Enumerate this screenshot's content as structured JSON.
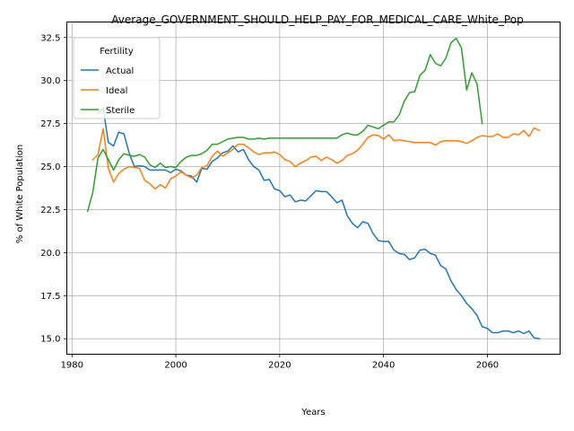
{
  "chart_data": {
    "type": "line",
    "title": "Average_GOVERNMENT_SHOULD_HELP_PAY_FOR_MEDICAL_CARE_White_Pop",
    "xlabel": "Years",
    "ylabel": "% of White Population",
    "xlim": [
      1979,
      2074
    ],
    "ylim": [
      14.1,
      33.4
    ],
    "xticks": [
      1980,
      2000,
      2020,
      2040,
      2060
    ],
    "yticks": [
      15.0,
      17.5,
      20.0,
      22.5,
      25.0,
      27.5,
      30.0,
      32.5
    ],
    "xtick_labels": [
      "1980",
      "2000",
      "2020",
      "2040",
      "2060"
    ],
    "ytick_labels": [
      "15.0",
      "17.5",
      "20.0",
      "22.5",
      "25.0",
      "27.5",
      "30.0",
      "32.5"
    ],
    "grid": true,
    "legend": {
      "title": "Fertility",
      "placement": "upper-left"
    },
    "series": [
      {
        "name": "Actual",
        "color": "#1f77b4",
        "x": [
          1985,
          1986,
          1987,
          1988,
          1989,
          1990,
          1991,
          1992,
          1993,
          1994,
          1995,
          1996,
          1997,
          1998,
          1999,
          2000,
          2001,
          2002,
          2003,
          2004,
          2005,
          2006,
          2007,
          2008,
          2009,
          2010,
          2011,
          2012,
          2013,
          2014,
          2015,
          2016,
          2017,
          2018,
          2019,
          2020,
          2021,
          2022,
          2023,
          2024,
          2025,
          2026,
          2027,
          2028,
          2029,
          2030,
          2031,
          2032,
          2033,
          2034,
          2035,
          2036,
          2037,
          2038,
          2039,
          2040,
          2041,
          2042,
          2043,
          2044,
          2045,
          2046,
          2047,
          2048,
          2049,
          2050,
          2051,
          2052,
          2053,
          2054,
          2055,
          2056,
          2057,
          2058,
          2059,
          2060,
          2061,
          2062,
          2063,
          2064,
          2065,
          2066,
          2067,
          2068,
          2069,
          2070
        ],
        "y": [
          28.1,
          28.4,
          26.4,
          26.2,
          27.0,
          26.9,
          25.8,
          25.0,
          25.05,
          25.0,
          24.8,
          24.8,
          24.8,
          24.8,
          24.65,
          24.85,
          24.75,
          24.5,
          24.45,
          24.1,
          24.9,
          24.85,
          25.3,
          25.5,
          25.8,
          25.9,
          26.2,
          25.85,
          26.0,
          25.4,
          25.0,
          24.8,
          24.2,
          24.25,
          23.7,
          23.6,
          23.25,
          23.35,
          22.95,
          23.05,
          23.0,
          23.3,
          23.6,
          23.55,
          23.55,
          23.25,
          22.9,
          23.05,
          22.15,
          21.7,
          21.45,
          21.8,
          21.7,
          21.1,
          20.7,
          20.65,
          20.65,
          20.15,
          19.95,
          19.9,
          19.6,
          19.7,
          20.15,
          20.2,
          19.95,
          19.85,
          19.25,
          19.05,
          18.35,
          17.85,
          17.5,
          17.05,
          16.75,
          16.35,
          15.7,
          15.6,
          15.35,
          15.35,
          15.45,
          15.45,
          15.35,
          15.45,
          15.3,
          15.45,
          15.05,
          15.0
        ]
      },
      {
        "name": "Ideal",
        "color": "#ff7f0e",
        "x": [
          1984,
          1985,
          1986,
          1987,
          1988,
          1989,
          1990,
          1991,
          1992,
          1993,
          1994,
          1995,
          1996,
          1997,
          1998,
          1999,
          2000,
          2001,
          2002,
          2003,
          2004,
          2005,
          2006,
          2007,
          2008,
          2009,
          2010,
          2011,
          2012,
          2013,
          2014,
          2015,
          2016,
          2017,
          2018,
          2019,
          2020,
          2021,
          2022,
          2023,
          2024,
          2025,
          2026,
          2027,
          2028,
          2029,
          2030,
          2031,
          2032,
          2033,
          2034,
          2035,
          2036,
          2037,
          2038,
          2039,
          2040,
          2041,
          2042,
          2043,
          2044,
          2045,
          2046,
          2047,
          2048,
          2049,
          2050,
          2051,
          2052,
          2053,
          2054,
          2055,
          2056,
          2057,
          2058,
          2059,
          2060,
          2061,
          2062,
          2063,
          2064,
          2065,
          2066,
          2067,
          2068,
          2069,
          2070
        ],
        "y": [
          25.4,
          25.7,
          27.2,
          24.9,
          24.1,
          24.6,
          24.85,
          25.0,
          24.95,
          24.9,
          24.2,
          24.0,
          23.7,
          23.95,
          23.75,
          24.3,
          24.45,
          24.7,
          24.5,
          24.35,
          24.5,
          24.95,
          25.05,
          25.6,
          25.9,
          25.6,
          25.8,
          26.0,
          26.3,
          26.3,
          26.1,
          25.85,
          25.7,
          25.8,
          25.8,
          25.85,
          25.7,
          25.4,
          25.3,
          25.0,
          25.2,
          25.35,
          25.55,
          25.6,
          25.35,
          25.55,
          25.4,
          25.2,
          25.35,
          25.65,
          25.75,
          25.95,
          26.3,
          26.7,
          26.85,
          26.8,
          26.6,
          26.85,
          26.5,
          26.55,
          26.5,
          26.45,
          26.4,
          26.4,
          26.4,
          26.4,
          26.25,
          26.45,
          26.5,
          26.5,
          26.5,
          26.45,
          26.35,
          26.5,
          26.7,
          26.8,
          26.75,
          26.75,
          26.9,
          26.7,
          26.7,
          26.9,
          26.85,
          27.1,
          26.75,
          27.25,
          27.1
        ]
      },
      {
        "name": "Sterile",
        "color": "#2ca02c",
        "x": [
          1983,
          1984,
          1985,
          1986,
          1987,
          1988,
          1989,
          1990,
          1991,
          1992,
          1993,
          1994,
          1995,
          1996,
          1997,
          1998,
          1999,
          2000,
          2001,
          2002,
          2003,
          2004,
          2005,
          2006,
          2007,
          2008,
          2009,
          2010,
          2011,
          2012,
          2013,
          2014,
          2015,
          2016,
          2017,
          2018,
          2019,
          2020,
          2021,
          2022,
          2023,
          2024,
          2025,
          2026,
          2027,
          2028,
          2029,
          2030,
          2031,
          2032,
          2033,
          2034,
          2035,
          2036,
          2037,
          2038,
          2039,
          2040,
          2041,
          2042,
          2043,
          2044,
          2045,
          2046,
          2047,
          2048,
          2049,
          2050,
          2051,
          2052,
          2053,
          2054,
          2055,
          2056,
          2057,
          2058,
          2059
        ],
        "y": [
          22.4,
          23.5,
          25.5,
          26.0,
          25.4,
          24.8,
          25.4,
          25.75,
          25.65,
          25.6,
          25.7,
          25.55,
          25.1,
          24.95,
          25.2,
          24.95,
          25.0,
          24.95,
          25.3,
          25.55,
          25.65,
          25.65,
          25.75,
          25.95,
          26.3,
          26.3,
          26.45,
          26.6,
          26.65,
          26.7,
          26.7,
          26.6,
          26.6,
          26.65,
          26.6,
          26.65,
          26.65,
          26.65,
          26.65,
          26.65,
          26.65,
          26.65,
          26.65,
          26.65,
          26.65,
          26.65,
          26.65,
          26.65,
          26.65,
          26.85,
          26.95,
          26.85,
          26.85,
          27.05,
          27.4,
          27.3,
          27.2,
          27.4,
          27.6,
          27.6,
          28.0,
          28.8,
          29.3,
          29.35,
          30.3,
          30.6,
          31.5,
          31.0,
          30.85,
          31.3,
          32.2,
          32.45,
          31.9,
          29.45,
          30.45,
          29.8,
          27.5
        ]
      }
    ]
  }
}
